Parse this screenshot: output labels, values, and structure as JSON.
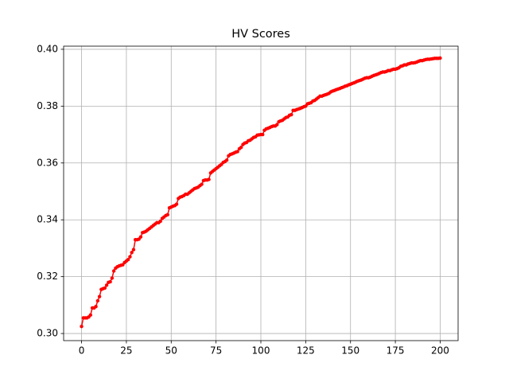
{
  "chart_data": {
    "type": "line",
    "title": "HV Scores",
    "x": [
      0,
      1,
      2,
      3,
      4,
      5,
      6,
      7,
      8,
      9,
      10,
      11,
      12,
      13,
      14,
      15,
      16,
      17,
      18,
      19,
      20,
      21,
      22,
      23,
      24,
      25,
      26,
      27,
      28,
      29,
      30,
      31,
      32,
      33,
      34,
      35,
      36,
      37,
      38,
      39,
      40,
      41,
      42,
      43,
      44,
      45,
      46,
      47,
      48,
      49,
      50,
      51,
      52,
      53,
      54,
      55,
      56,
      57,
      58,
      59,
      60,
      61,
      62,
      63,
      64,
      65,
      66,
      67,
      68,
      69,
      70,
      71,
      72,
      73,
      74,
      75,
      76,
      77,
      78,
      79,
      80,
      81,
      82,
      83,
      84,
      85,
      86,
      87,
      88,
      89,
      90,
      91,
      92,
      93,
      94,
      95,
      96,
      97,
      98,
      99,
      100,
      101,
      102,
      103,
      104,
      105,
      106,
      107,
      108,
      109,
      110,
      111,
      112,
      113,
      114,
      115,
      116,
      117,
      118,
      119,
      120,
      121,
      122,
      123,
      124,
      125,
      126,
      127,
      128,
      129,
      130,
      131,
      132,
      133,
      134,
      135,
      136,
      137,
      138,
      139,
      140,
      141,
      142,
      143,
      144,
      145,
      146,
      147,
      148,
      149,
      150,
      151,
      152,
      153,
      154,
      155,
      156,
      157,
      158,
      159,
      160,
      161,
      162,
      163,
      164,
      165,
      166,
      167,
      168,
      169,
      170,
      171,
      172,
      173,
      174,
      175,
      176,
      177,
      178,
      179,
      180,
      181,
      182,
      183,
      184,
      185,
      186,
      187,
      188,
      189,
      190,
      191,
      192,
      193,
      194,
      195,
      196,
      197,
      198,
      199,
      200
    ],
    "series": [
      {
        "color": "red",
        "values": [
          0.3025,
          0.3055,
          0.3055,
          0.3055,
          0.3058,
          0.3065,
          0.309,
          0.309,
          0.3095,
          0.3115,
          0.313,
          0.3155,
          0.3158,
          0.316,
          0.317,
          0.318,
          0.3182,
          0.3195,
          0.322,
          0.323,
          0.3235,
          0.3238,
          0.324,
          0.3242,
          0.325,
          0.3255,
          0.326,
          0.327,
          0.3285,
          0.3295,
          0.333,
          0.333,
          0.3332,
          0.334,
          0.3355,
          0.3357,
          0.336,
          0.3365,
          0.337,
          0.3375,
          0.338,
          0.3385,
          0.339,
          0.339,
          0.3395,
          0.3405,
          0.341,
          0.3415,
          0.3418,
          0.3442,
          0.3445,
          0.3448,
          0.345,
          0.3455,
          0.3475,
          0.348,
          0.3482,
          0.3485,
          0.349,
          0.349,
          0.3495,
          0.35,
          0.3505,
          0.351,
          0.3512,
          0.3515,
          0.352,
          0.3525,
          0.3538,
          0.354,
          0.354,
          0.3542,
          0.3565,
          0.357,
          0.3575,
          0.358,
          0.3585,
          0.359,
          0.3595,
          0.3602,
          0.3605,
          0.361,
          0.3625,
          0.363,
          0.3632,
          0.3635,
          0.3638,
          0.364,
          0.365,
          0.3655,
          0.3665,
          0.367,
          0.3672,
          0.3678,
          0.368,
          0.3685,
          0.369,
          0.3692,
          0.3698,
          0.3699,
          0.37,
          0.37,
          0.3715,
          0.372,
          0.3722,
          0.3725,
          0.3728,
          0.373,
          0.373,
          0.3735,
          0.3745,
          0.3748,
          0.375,
          0.3755,
          0.376,
          0.3762,
          0.3768,
          0.377,
          0.3785,
          0.3785,
          0.3788,
          0.379,
          0.3792,
          0.3795,
          0.3798,
          0.38,
          0.3808,
          0.381,
          0.3812,
          0.3818,
          0.382,
          0.3825,
          0.383,
          0.3835,
          0.3835,
          0.3838,
          0.384,
          0.3842,
          0.3845,
          0.385,
          0.3853,
          0.3855,
          0.3858,
          0.386,
          0.3862,
          0.3865,
          0.3867,
          0.387,
          0.3872,
          0.3875,
          0.3877,
          0.388,
          0.3882,
          0.3885,
          0.3888,
          0.389,
          0.3892,
          0.3895,
          0.3898,
          0.39,
          0.39,
          0.3902,
          0.3905,
          0.3908,
          0.391,
          0.3912,
          0.3915,
          0.3918,
          0.392,
          0.392,
          0.3922,
          0.3925,
          0.3925,
          0.3928,
          0.393,
          0.393,
          0.3932,
          0.3935,
          0.394,
          0.3942,
          0.3945,
          0.3945,
          0.3948,
          0.395,
          0.3952,
          0.3952,
          0.3953,
          0.3955,
          0.3958,
          0.396,
          0.396,
          0.3962,
          0.3964,
          0.3965,
          0.3965,
          0.3966,
          0.3967,
          0.3968,
          0.3968,
          0.3968,
          0.3969
        ]
      }
    ],
    "xlim": [
      -10,
      210
    ],
    "xticks": [
      0,
      25,
      50,
      75,
      100,
      125,
      150,
      175,
      200
    ],
    "ylim": [
      0.2975,
      0.4011
    ],
    "yticks": [
      {
        "value": 0.3,
        "label": "0.30"
      },
      {
        "value": 0.32,
        "label": "0.32"
      },
      {
        "value": 0.34,
        "label": "0.34"
      },
      {
        "value": 0.36,
        "label": "0.36"
      },
      {
        "value": 0.38,
        "label": "0.38"
      },
      {
        "value": 0.4,
        "label": "0.40"
      }
    ],
    "grid": true
  }
}
